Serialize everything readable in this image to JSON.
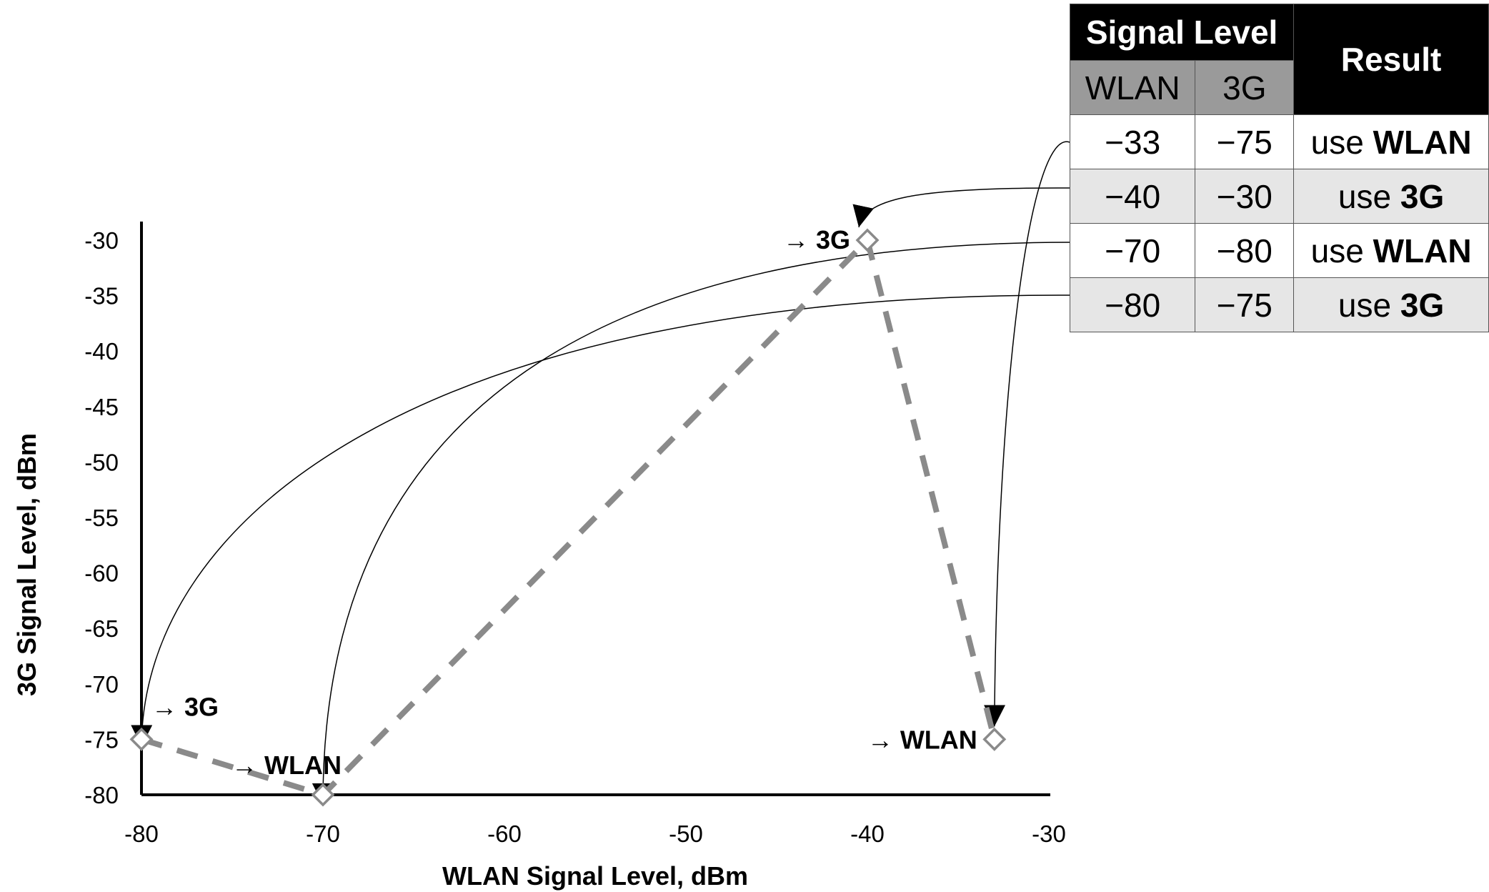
{
  "chart_data": {
    "type": "line",
    "xlabel": "WLAN Signal Level, dBm",
    "ylabel": "3G Signal Level, dBm",
    "xlim": [
      -80,
      -30
    ],
    "ylim": [
      -80,
      -30
    ],
    "xticks": [
      -80,
      -70,
      -60,
      -50,
      -40,
      -30
    ],
    "yticks": [
      -30,
      -35,
      -40,
      -45,
      -50,
      -55,
      -60,
      -65,
      -70,
      -75,
      -80
    ],
    "line_style": "dashed",
    "line_color": "#8a8a8a",
    "marker": "diamond",
    "series": [
      {
        "points": [
          {
            "x": -80,
            "y": -75
          },
          {
            "x": -70,
            "y": -80
          },
          {
            "x": -40,
            "y": -30
          },
          {
            "x": -33,
            "y": -75
          }
        ]
      }
    ],
    "point_labels": [
      {
        "x": -80,
        "y": -75,
        "arrow": "→",
        "text": "3G"
      },
      {
        "x": -70,
        "y": -80,
        "arrow": "→",
        "text": "WLAN"
      },
      {
        "x": -40,
        "y": -30,
        "arrow": "→",
        "text": "3G"
      },
      {
        "x": -33,
        "y": -75,
        "arrow": "→",
        "text": "WLAN"
      }
    ]
  },
  "table": {
    "header_group": "Signal Level",
    "header_result": "Result",
    "header_wlan": "WLAN",
    "header_3g": "3G",
    "rows": [
      {
        "wlan": "−33",
        "g3": "−75",
        "prefix": "use ",
        "result": "WLAN"
      },
      {
        "wlan": "−40",
        "g3": "−30",
        "prefix": "use ",
        "result": "3G"
      },
      {
        "wlan": "−70",
        "g3": "−80",
        "prefix": "use ",
        "result": "WLAN"
      },
      {
        "wlan": "−80",
        "g3": "−75",
        "prefix": "use ",
        "result": "3G"
      }
    ]
  }
}
